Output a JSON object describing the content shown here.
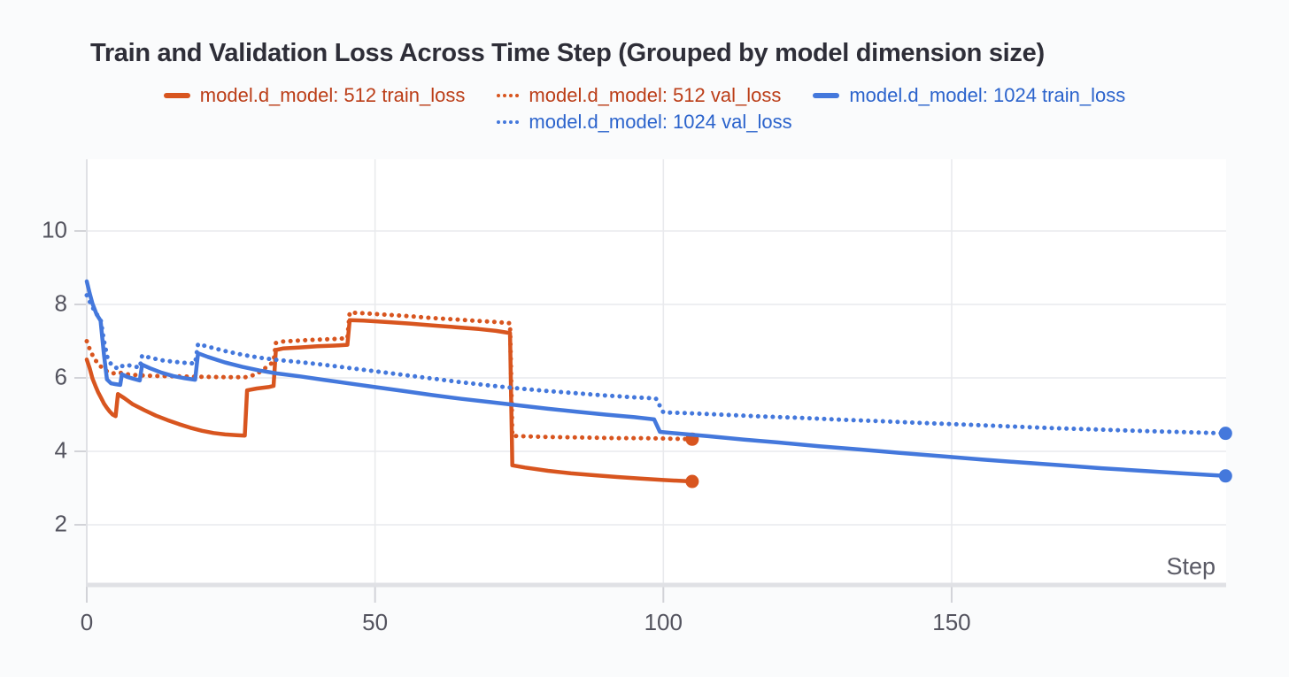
{
  "title": "Train and Validation Loss Across Time Step (Grouped by model dimension size)",
  "axes": {
    "x_label": "Step",
    "x_tick_labels": [
      "0",
      "50",
      "100",
      "150"
    ],
    "y_tick_labels": [
      "10",
      "8",
      "6",
      "4",
      "2"
    ]
  },
  "colors": {
    "orange_line": "#d8551f",
    "orange_text": "#bb3d17",
    "blue_line": "#4478dc",
    "blue_text": "#2b63cc",
    "grid": "#e9eaed",
    "axis": "#e0e1e5",
    "tick_mark": "#d2d3d8",
    "tick_text": "#53535e",
    "title_text": "#2e2e38",
    "plot_background": "#ffffff"
  },
  "chart_data": {
    "type": "line",
    "title": "Train and Validation Loss Across Time Step (Grouped by model dimension size)",
    "xlabel": "Step",
    "ylabel": "",
    "x_ticks": [
      0,
      50,
      100,
      150
    ],
    "y_ticks": [
      10,
      8,
      6,
      4,
      2
    ],
    "xlim": [
      0,
      197.6
    ],
    "ylim": [
      0.3,
      11.95
    ],
    "grid": true,
    "legend_position": "top-centered-two-rows",
    "series": [
      {
        "name": "model.d_model: 512 train_loss",
        "group": "512",
        "metric": "train_loss",
        "color": "#d8551f",
        "text_color": "#bb3d17",
        "style": "solid",
        "end_marker": true,
        "legend_row": 1,
        "points": [
          [
            0,
            6.5
          ],
          [
            0.5,
            6.26
          ],
          [
            1,
            5.98
          ],
          [
            1.5,
            5.78
          ],
          [
            2,
            5.6
          ],
          [
            2.5,
            5.45
          ],
          [
            3,
            5.3
          ],
          [
            3.5,
            5.18
          ],
          [
            4,
            5.08
          ],
          [
            4.5,
            5.0
          ],
          [
            5,
            4.96
          ],
          [
            5.4,
            5.56
          ],
          [
            6.5,
            5.45
          ],
          [
            8,
            5.28
          ],
          [
            10,
            5.12
          ],
          [
            12,
            4.97
          ],
          [
            14,
            4.85
          ],
          [
            16,
            4.74
          ],
          [
            18,
            4.64
          ],
          [
            20,
            4.56
          ],
          [
            22,
            4.5
          ],
          [
            24,
            4.46
          ],
          [
            26,
            4.44
          ],
          [
            27.4,
            4.43
          ],
          [
            27.8,
            5.66
          ],
          [
            29.5,
            5.71
          ],
          [
            31.5,
            5.75
          ],
          [
            32.4,
            5.78
          ],
          [
            32.8,
            6.76
          ],
          [
            34,
            6.8
          ],
          [
            37,
            6.83
          ],
          [
            40,
            6.86
          ],
          [
            43,
            6.88
          ],
          [
            45.2,
            6.9
          ],
          [
            45.6,
            7.57
          ],
          [
            48,
            7.56
          ],
          [
            52,
            7.52
          ],
          [
            56,
            7.48
          ],
          [
            60,
            7.43
          ],
          [
            64,
            7.38
          ],
          [
            68,
            7.33
          ],
          [
            71,
            7.28
          ],
          [
            73.4,
            7.22
          ],
          [
            73.8,
            3.62
          ],
          [
            76,
            3.56
          ],
          [
            80,
            3.47
          ],
          [
            84,
            3.4
          ],
          [
            88,
            3.35
          ],
          [
            92,
            3.3
          ],
          [
            96,
            3.26
          ],
          [
            100,
            3.22
          ],
          [
            105,
            3.18
          ]
        ]
      },
      {
        "name": "model.d_model: 512 val_loss",
        "group": "512",
        "metric": "val_loss",
        "color": "#d8551f",
        "text_color": "#bb3d17",
        "style": "dotted",
        "end_marker": true,
        "legend_row": 1,
        "points": [
          [
            0,
            7.0
          ],
          [
            0.7,
            6.7
          ],
          [
            1.5,
            6.48
          ],
          [
            2.5,
            6.3
          ],
          [
            3.5,
            6.18
          ],
          [
            4.5,
            6.12
          ],
          [
            5.5,
            6.15
          ],
          [
            7,
            6.1
          ],
          [
            9,
            6.07
          ],
          [
            12,
            6.05
          ],
          [
            16,
            6.04
          ],
          [
            20,
            6.03
          ],
          [
            24,
            6.02
          ],
          [
            27.5,
            6.02
          ],
          [
            28.5,
            6.05
          ],
          [
            30,
            6.16
          ],
          [
            31.5,
            6.33
          ],
          [
            32.4,
            6.44
          ],
          [
            32.8,
            6.95
          ],
          [
            34,
            6.99
          ],
          [
            37,
            7.02
          ],
          [
            40,
            7.04
          ],
          [
            43,
            7.06
          ],
          [
            45.2,
            7.08
          ],
          [
            45.6,
            7.78
          ],
          [
            48,
            7.76
          ],
          [
            52,
            7.72
          ],
          [
            56,
            7.68
          ],
          [
            60,
            7.63
          ],
          [
            64,
            7.59
          ],
          [
            68,
            7.55
          ],
          [
            71,
            7.52
          ],
          [
            73.4,
            7.49
          ],
          [
            73.8,
            4.42
          ],
          [
            76,
            4.41
          ],
          [
            80,
            4.39
          ],
          [
            84,
            4.38
          ],
          [
            88,
            4.37
          ],
          [
            92,
            4.36
          ],
          [
            96,
            4.36
          ],
          [
            100,
            4.35
          ],
          [
            105,
            4.33
          ]
        ]
      },
      {
        "name": "model.d_model: 1024 train_loss",
        "group": "1024",
        "metric": "train_loss",
        "color": "#4478dc",
        "text_color": "#2b63cc",
        "style": "solid",
        "end_marker": true,
        "legend_row": 1,
        "points": [
          [
            0,
            8.63
          ],
          [
            0.5,
            8.3
          ],
          [
            1,
            8.02
          ],
          [
            1.7,
            7.73
          ],
          [
            2.4,
            7.56
          ],
          [
            3,
            6.62
          ],
          [
            3.5,
            5.96
          ],
          [
            4.2,
            5.85
          ],
          [
            5,
            5.83
          ],
          [
            5.8,
            5.81
          ],
          [
            6.1,
            6.1
          ],
          [
            7,
            6.03
          ],
          [
            8,
            5.98
          ],
          [
            9.2,
            5.93
          ],
          [
            9.6,
            6.36
          ],
          [
            11,
            6.26
          ],
          [
            13,
            6.14
          ],
          [
            15,
            6.05
          ],
          [
            17,
            5.99
          ],
          [
            18.8,
            5.95
          ],
          [
            19.3,
            6.67
          ],
          [
            21,
            6.57
          ],
          [
            24,
            6.42
          ],
          [
            27,
            6.3
          ],
          [
            30,
            6.2
          ],
          [
            33,
            6.12
          ],
          [
            37,
            6.04
          ],
          [
            41,
            5.95
          ],
          [
            45,
            5.86
          ],
          [
            50,
            5.75
          ],
          [
            55,
            5.64
          ],
          [
            60,
            5.53
          ],
          [
            65,
            5.43
          ],
          [
            70,
            5.34
          ],
          [
            75,
            5.25
          ],
          [
            80,
            5.16
          ],
          [
            85,
            5.08
          ],
          [
            90,
            5.0
          ],
          [
            95,
            4.93
          ],
          [
            98.4,
            4.87
          ],
          [
            99.4,
            4.53
          ],
          [
            103,
            4.48
          ],
          [
            108,
            4.41
          ],
          [
            114,
            4.32
          ],
          [
            120,
            4.24
          ],
          [
            127,
            4.14
          ],
          [
            134,
            4.05
          ],
          [
            141,
            3.96
          ],
          [
            148,
            3.87
          ],
          [
            155,
            3.78
          ],
          [
            162,
            3.7
          ],
          [
            169,
            3.62
          ],
          [
            176,
            3.54
          ],
          [
            183,
            3.47
          ],
          [
            190,
            3.4
          ],
          [
            197.5,
            3.33
          ]
        ]
      },
      {
        "name": "model.d_model: 1024 val_loss",
        "group": "1024",
        "metric": "val_loss",
        "color": "#4478dc",
        "text_color": "#2b63cc",
        "style": "dotted",
        "end_marker": true,
        "legend_row": 2,
        "points": [
          [
            0,
            8.25
          ],
          [
            0.8,
            7.98
          ],
          [
            1.6,
            7.76
          ],
          [
            2.4,
            7.6
          ],
          [
            3,
            7.0
          ],
          [
            3.6,
            6.55
          ],
          [
            4.3,
            6.35
          ],
          [
            5,
            6.28
          ],
          [
            5.8,
            6.25
          ],
          [
            6.2,
            6.33
          ],
          [
            7,
            6.35
          ],
          [
            8,
            6.32
          ],
          [
            9.2,
            6.28
          ],
          [
            9.6,
            6.61
          ],
          [
            11,
            6.55
          ],
          [
            13,
            6.48
          ],
          [
            15,
            6.44
          ],
          [
            17,
            6.41
          ],
          [
            18.8,
            6.39
          ],
          [
            19.3,
            6.92
          ],
          [
            21,
            6.85
          ],
          [
            24,
            6.73
          ],
          [
            27,
            6.63
          ],
          [
            30,
            6.55
          ],
          [
            33,
            6.49
          ],
          [
            37,
            6.43
          ],
          [
            41,
            6.36
          ],
          [
            45,
            6.28
          ],
          [
            50,
            6.18
          ],
          [
            55,
            6.08
          ],
          [
            60,
            5.98
          ],
          [
            65,
            5.88
          ],
          [
            70,
            5.79
          ],
          [
            75,
            5.71
          ],
          [
            80,
            5.64
          ],
          [
            85,
            5.58
          ],
          [
            90,
            5.52
          ],
          [
            95,
            5.47
          ],
          [
            98.7,
            5.44
          ],
          [
            100,
            5.06
          ],
          [
            104,
            5.04
          ],
          [
            110,
            5.0
          ],
          [
            117,
            4.95
          ],
          [
            124,
            4.91
          ],
          [
            131,
            4.86
          ],
          [
            138,
            4.82
          ],
          [
            145,
            4.77
          ],
          [
            152,
            4.73
          ],
          [
            160,
            4.68
          ],
          [
            168,
            4.63
          ],
          [
            176,
            4.59
          ],
          [
            184,
            4.55
          ],
          [
            191,
            4.52
          ],
          [
            197.5,
            4.49
          ]
        ]
      }
    ]
  }
}
